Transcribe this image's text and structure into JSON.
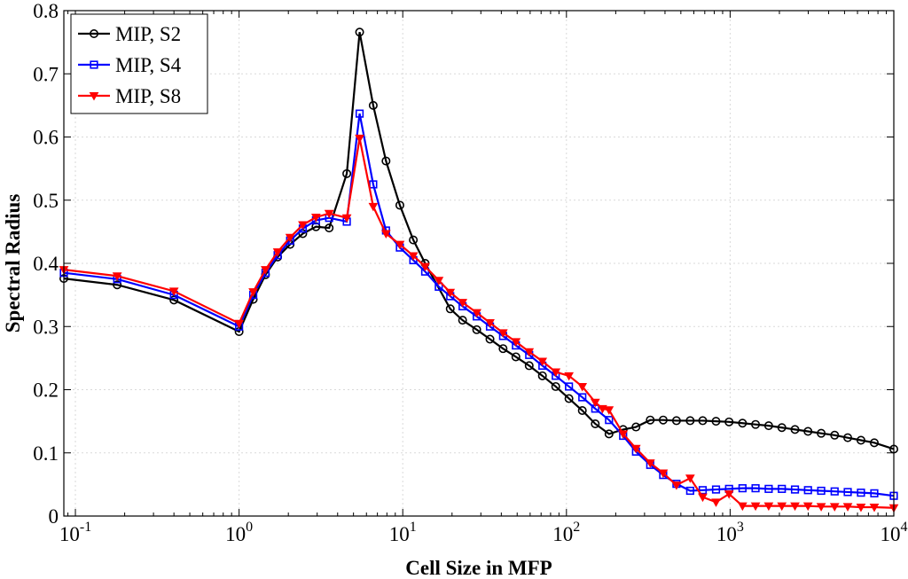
{
  "chart_data": {
    "type": "line",
    "xscale": "log",
    "xlabel": "Cell Size in MFP",
    "ylabel": "Spectral Radius",
    "xlim": [
      0.085,
      10000
    ],
    "ylim": [
      0,
      0.8
    ],
    "x_ticks": [
      {
        "base": "10",
        "exp": "-1",
        "value": 0.1
      },
      {
        "base": "10",
        "exp": "0",
        "value": 1
      },
      {
        "base": "10",
        "exp": "1",
        "value": 10
      },
      {
        "base": "10",
        "exp": "2",
        "value": 100
      },
      {
        "base": "10",
        "exp": "3",
        "value": 1000
      },
      {
        "base": "10",
        "exp": "4",
        "value": 10000
      }
    ],
    "y_ticks": [
      "0",
      "0.1",
      "0.2",
      "0.3",
      "0.4",
      "0.5",
      "0.6",
      "0.7",
      "0.8"
    ],
    "grid": true,
    "legend_position": "top-left",
    "series": [
      {
        "name": "MIP, S2",
        "color": "#000000",
        "marker": "circle",
        "x": [
          0.085,
          0.18,
          0.4,
          1.0,
          1.22,
          1.45,
          1.72,
          2.05,
          2.45,
          2.95,
          3.55,
          4.55,
          5.45,
          6.6,
          7.9,
          9.6,
          11.6,
          13.7,
          19.5,
          23.2,
          28.3,
          34.1,
          41.0,
          49.1,
          59.2,
          71.3,
          86.0,
          103.6,
          125,
          150,
          182,
          222,
          266,
          325,
          390,
          470,
          570,
          680,
          820,
          985,
          1190,
          1430,
          1720,
          2070,
          2490,
          2990,
          3600,
          4350,
          5230,
          6300,
          7600,
          10000
        ],
        "y": [
          0.376,
          0.366,
          0.342,
          0.292,
          0.343,
          0.382,
          0.41,
          0.43,
          0.447,
          0.458,
          0.456,
          0.542,
          0.766,
          0.65,
          0.562,
          0.492,
          0.437,
          0.4,
          0.328,
          0.31,
          0.295,
          0.28,
          0.265,
          0.252,
          0.238,
          0.222,
          0.205,
          0.186,
          0.167,
          0.146,
          0.13,
          0.137,
          0.141,
          0.152,
          0.152,
          0.151,
          0.151,
          0.151,
          0.15,
          0.149,
          0.147,
          0.145,
          0.143,
          0.14,
          0.137,
          0.134,
          0.131,
          0.128,
          0.124,
          0.12,
          0.116,
          0.106
        ]
      },
      {
        "name": "MIP, S4",
        "color": "#0000ff",
        "marker": "square",
        "x": [
          0.085,
          0.18,
          0.4,
          1.0,
          1.22,
          1.45,
          1.72,
          2.05,
          2.45,
          2.95,
          3.55,
          4.55,
          5.45,
          6.6,
          7.9,
          9.6,
          11.6,
          13.7,
          16.6,
          19.5,
          23.2,
          28.3,
          34.1,
          41.0,
          49.1,
          59.2,
          71.3,
          86.0,
          103.6,
          125,
          150,
          182,
          222,
          266,
          325,
          390,
          470,
          570,
          680,
          820,
          985,
          1190,
          1430,
          1720,
          2070,
          2490,
          2990,
          3600,
          4350,
          5230,
          6300,
          7600,
          10000
        ],
        "y": [
          0.385,
          0.375,
          0.35,
          0.3,
          0.35,
          0.385,
          0.413,
          0.436,
          0.455,
          0.468,
          0.472,
          0.466,
          0.637,
          0.525,
          0.452,
          0.425,
          0.405,
          0.387,
          0.363,
          0.348,
          0.332,
          0.316,
          0.3,
          0.285,
          0.27,
          0.255,
          0.238,
          0.222,
          0.205,
          0.188,
          0.17,
          0.152,
          0.127,
          0.102,
          0.081,
          0.065,
          0.051,
          0.04,
          0.041,
          0.042,
          0.043,
          0.044,
          0.044,
          0.043,
          0.043,
          0.042,
          0.041,
          0.04,
          0.039,
          0.038,
          0.037,
          0.036,
          0.032
        ]
      },
      {
        "name": "MIP, S8",
        "color": "#ff0000",
        "marker": "triangle-down",
        "x": [
          0.085,
          0.18,
          0.4,
          1.0,
          1.22,
          1.45,
          1.72,
          2.05,
          2.45,
          2.95,
          3.55,
          4.55,
          5.45,
          6.6,
          7.9,
          9.6,
          11.6,
          13.7,
          16.6,
          19.5,
          23.2,
          28.3,
          34.1,
          41.0,
          49.1,
          59.2,
          71.3,
          86.0,
          103.6,
          125,
          150,
          166,
          182,
          222,
          266,
          325,
          390,
          470,
          570,
          680,
          820,
          985,
          1190,
          1430,
          1720,
          2070,
          2490,
          2990,
          3600,
          4350,
          5230,
          6300,
          7600,
          10000
        ],
        "y": [
          0.39,
          0.38,
          0.356,
          0.305,
          0.355,
          0.39,
          0.418,
          0.441,
          0.461,
          0.473,
          0.479,
          0.472,
          0.598,
          0.49,
          0.447,
          0.43,
          0.412,
          0.395,
          0.373,
          0.354,
          0.338,
          0.322,
          0.306,
          0.29,
          0.276,
          0.26,
          0.245,
          0.228,
          0.222,
          0.205,
          0.18,
          0.17,
          0.168,
          0.13,
          0.107,
          0.084,
          0.068,
          0.049,
          0.06,
          0.03,
          0.022,
          0.035,
          0.016,
          0.016,
          0.016,
          0.016,
          0.016,
          0.016,
          0.015,
          0.015,
          0.015,
          0.014,
          0.014,
          0.013
        ]
      }
    ]
  }
}
